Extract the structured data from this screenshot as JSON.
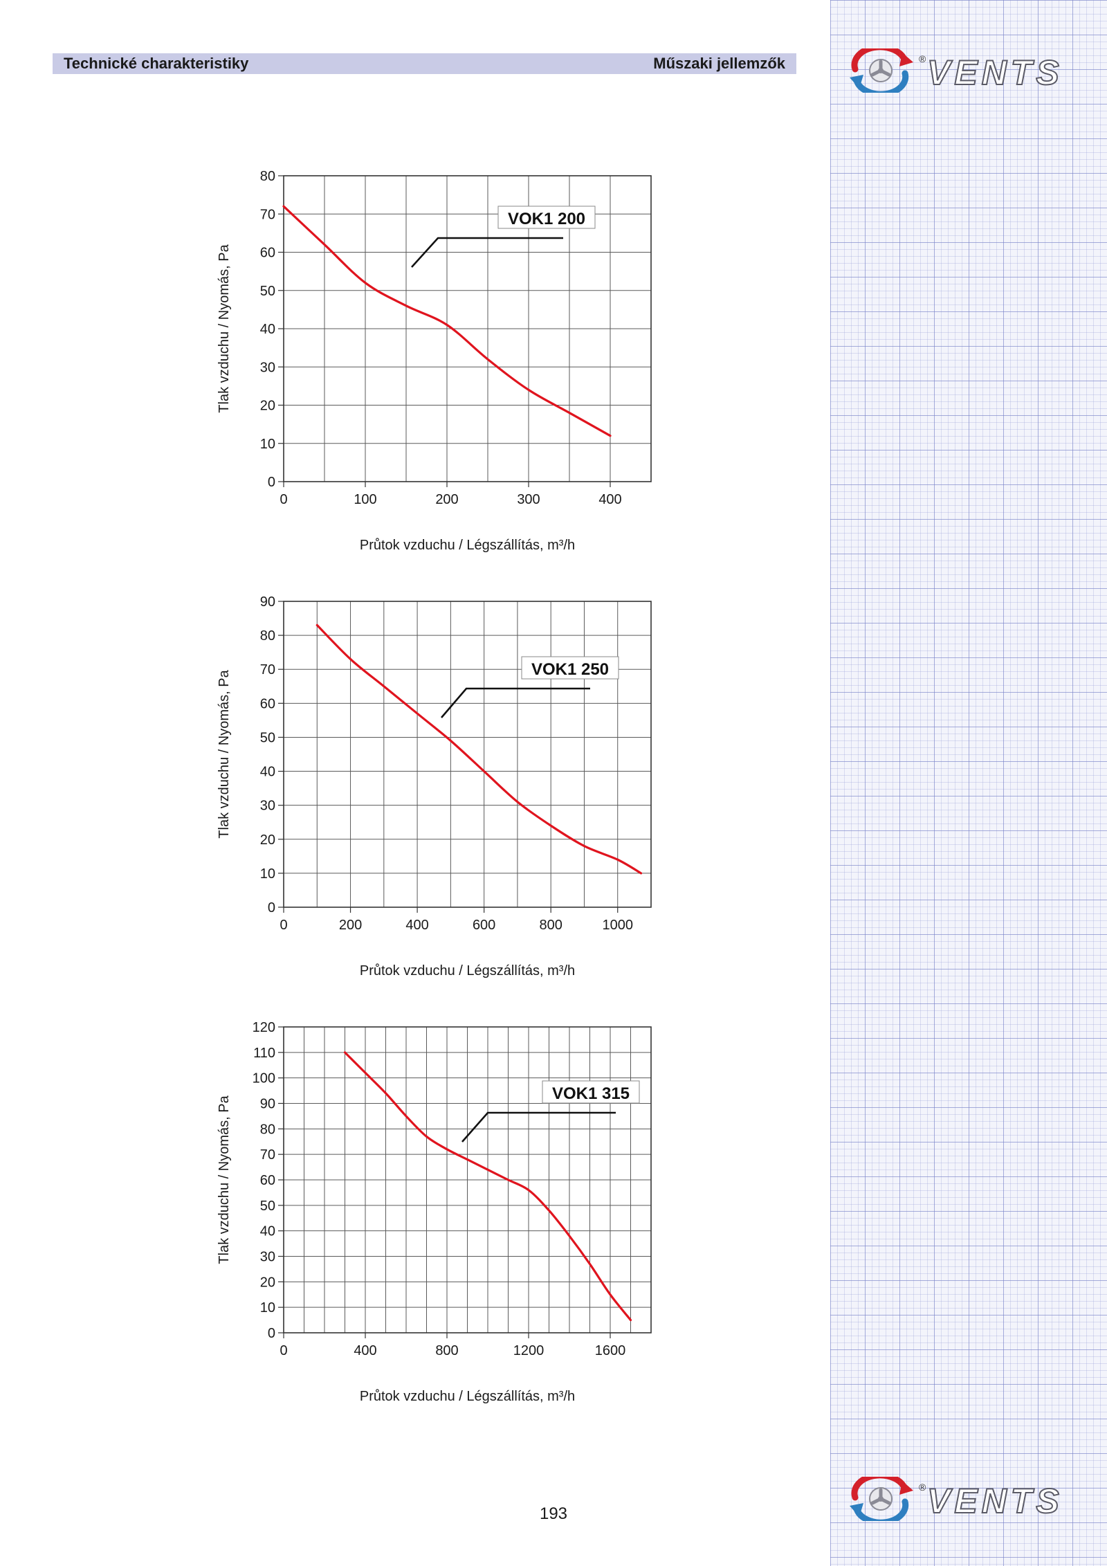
{
  "header": {
    "left_title": "Technické charakteristiky",
    "right_title": "Műszaki jellemzők"
  },
  "brand": {
    "name": "VENTS",
    "registered_mark": "®"
  },
  "colors": {
    "curve": "#e0141e",
    "header_bar": "#c9cbe6",
    "grid": "#555555",
    "logo_red": "#d4202a",
    "logo_blue": "#2e7fc0"
  },
  "page_number": "193",
  "chart_data": [
    {
      "type": "line",
      "series": [
        {
          "name": "VOK1 200",
          "x": [
            0,
            50,
            100,
            150,
            200,
            250,
            300,
            350,
            400
          ],
          "y": [
            72,
            62,
            52,
            46,
            41,
            32,
            24,
            18,
            12
          ]
        }
      ],
      "xlabel": "Průtok vzduchu / Légszállítás, m³/h",
      "ylabel": "Tlak vzduchu / Nyomás, Pa",
      "xlim": [
        0,
        450
      ],
      "ylim": [
        0,
        80
      ],
      "x_ticks": [
        0,
        100,
        200,
        300,
        400
      ],
      "y_ticks": [
        0,
        10,
        20,
        30,
        40,
        50,
        60,
        70,
        80
      ],
      "x_grid_step": 50,
      "y_grid_step": 10,
      "grid": true,
      "legend": "callout"
    },
    {
      "type": "line",
      "series": [
        {
          "name": "VOK1 250",
          "x": [
            100,
            200,
            300,
            400,
            500,
            600,
            700,
            800,
            900,
            1000,
            1070
          ],
          "y": [
            83,
            73,
            65,
            57,
            49,
            40,
            31,
            24,
            18,
            14,
            10
          ]
        }
      ],
      "xlabel": "Průtok vzduchu / Légszállítás, m³/h",
      "ylabel": "Tlak vzduchu / Nyomás, Pa",
      "xlim": [
        0,
        1100
      ],
      "ylim": [
        0,
        90
      ],
      "x_ticks": [
        0,
        200,
        400,
        600,
        800,
        1000
      ],
      "y_ticks": [
        0,
        10,
        20,
        30,
        40,
        50,
        60,
        70,
        80,
        90
      ],
      "x_grid_step": 100,
      "y_grid_step": 10,
      "grid": true,
      "legend": "callout"
    },
    {
      "type": "line",
      "series": [
        {
          "name": "VOK1 315",
          "x": [
            300,
            400,
            500,
            600,
            700,
            800,
            900,
            1000,
            1100,
            1200,
            1300,
            1400,
            1500,
            1600,
            1700
          ],
          "y": [
            110,
            102,
            94,
            85,
            77,
            72,
            68,
            64,
            60,
            56,
            48,
            38,
            27,
            15,
            5
          ]
        }
      ],
      "xlabel": "Průtok vzduchu / Légszállítás, m³/h",
      "ylabel": "Tlak vzduchu / Nyomás, Pa",
      "xlim": [
        0,
        1800
      ],
      "ylim": [
        0,
        120
      ],
      "x_ticks": [
        0,
        400,
        800,
        1200,
        1600
      ],
      "y_ticks": [
        0,
        10,
        20,
        30,
        40,
        50,
        60,
        70,
        80,
        90,
        100,
        110,
        120
      ],
      "x_grid_step": 100,
      "y_grid_step": 10,
      "grid": true,
      "legend": "callout"
    }
  ]
}
